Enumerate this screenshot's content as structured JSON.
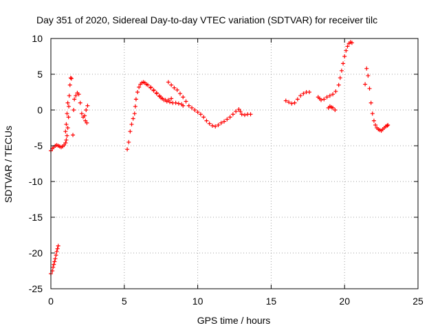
{
  "chart_data": {
    "type": "scatter",
    "title": "Day 351 of 2020, Sidereal Day-to-day VTEC variation (SDTVAR) for receiver tilc",
    "xlabel": "GPS time / hours",
    "ylabel": "SDTVAR / TECUs",
    "xlim": [
      0,
      25
    ],
    "ylim": [
      -25,
      10
    ],
    "x_ticks": [
      0,
      5,
      10,
      15,
      20,
      25
    ],
    "y_ticks": [
      10,
      5,
      0,
      -5,
      -10,
      -15,
      -20,
      -25
    ],
    "grid": true,
    "marker": "plus",
    "marker_color": "#ff0000",
    "series": [
      {
        "points": [
          [
            0.0,
            -22.9
          ],
          [
            0.1,
            -22.5
          ],
          [
            0.15,
            -22.0
          ],
          [
            0.2,
            -21.6
          ],
          [
            0.25,
            -21.2
          ],
          [
            0.3,
            -20.8
          ],
          [
            0.35,
            -20.3
          ],
          [
            0.4,
            -19.8
          ],
          [
            0.45,
            -19.4
          ],
          [
            0.5,
            -19.0
          ],
          [
            0.0,
            -5.7
          ],
          [
            0.1,
            -5.4
          ],
          [
            0.2,
            -5.2
          ],
          [
            0.3,
            -5.0
          ],
          [
            0.4,
            -4.9
          ],
          [
            0.5,
            -5.0
          ],
          [
            0.6,
            -5.1
          ],
          [
            0.7,
            -5.2
          ],
          [
            0.8,
            -5.1
          ],
          [
            0.9,
            -4.9
          ],
          [
            1.0,
            -4.6
          ],
          [
            1.05,
            -4.2
          ],
          [
            1.1,
            -3.6
          ],
          [
            1.15,
            -2.5
          ],
          [
            1.2,
            -1.0
          ],
          [
            1.22,
            0.5
          ],
          [
            1.25,
            2.0
          ],
          [
            1.3,
            3.5
          ],
          [
            1.35,
            4.5
          ],
          [
            1.4,
            4.4
          ],
          [
            1.0,
            -3.0
          ],
          [
            1.05,
            -2.0
          ],
          [
            1.1,
            -0.5
          ],
          [
            1.15,
            1.0
          ],
          [
            1.5,
            -3.5
          ],
          [
            1.55,
            0.0
          ],
          [
            1.6,
            1.5
          ],
          [
            1.7,
            2.0
          ],
          [
            1.8,
            2.4
          ],
          [
            1.9,
            2.2
          ],
          [
            2.0,
            1.0
          ],
          [
            2.1,
            -0.5
          ],
          [
            2.2,
            -1.0
          ],
          [
            2.3,
            -0.8
          ],
          [
            2.35,
            -1.5
          ],
          [
            2.4,
            0.0
          ],
          [
            2.45,
            -1.8
          ],
          [
            2.5,
            0.6
          ],
          [
            5.2,
            -5.5
          ],
          [
            5.3,
            -4.5
          ],
          [
            5.4,
            -3.0
          ],
          [
            5.5,
            -2.0
          ],
          [
            5.6,
            -1.2
          ],
          [
            5.7,
            -0.5
          ],
          [
            5.75,
            0.5
          ],
          [
            5.8,
            1.5
          ],
          [
            5.9,
            2.5
          ],
          [
            6.0,
            3.2
          ],
          [
            6.1,
            3.6
          ],
          [
            6.2,
            3.8
          ],
          [
            6.3,
            3.9
          ],
          [
            6.4,
            3.8
          ],
          [
            6.6,
            3.5
          ],
          [
            6.8,
            3.1
          ],
          [
            7.0,
            2.7
          ],
          [
            7.2,
            2.3
          ],
          [
            7.4,
            1.9
          ],
          [
            7.6,
            1.6
          ],
          [
            7.8,
            1.4
          ],
          [
            8.0,
            1.4
          ],
          [
            8.2,
            1.6
          ],
          [
            6.5,
            3.6
          ],
          [
            6.8,
            3.2
          ],
          [
            7.0,
            2.8
          ],
          [
            7.2,
            2.4
          ],
          [
            7.4,
            2.0
          ],
          [
            7.5,
            1.7
          ],
          [
            7.7,
            1.4
          ],
          [
            7.9,
            1.2
          ],
          [
            8.1,
            1.1
          ],
          [
            8.3,
            1.0
          ],
          [
            8.5,
            1.0
          ],
          [
            8.7,
            0.9
          ],
          [
            8.9,
            0.8
          ],
          [
            9.0,
            0.6
          ],
          [
            8.0,
            3.9
          ],
          [
            8.2,
            3.5
          ],
          [
            8.4,
            3.1
          ],
          [
            8.6,
            2.8
          ],
          [
            8.8,
            2.3
          ],
          [
            9.0,
            1.8
          ],
          [
            9.2,
            1.2
          ],
          [
            9.4,
            0.6
          ],
          [
            9.6,
            0.3
          ],
          [
            9.8,
            0.0
          ],
          [
            10.0,
            -0.3
          ],
          [
            10.2,
            -0.6
          ],
          [
            10.4,
            -1.0
          ],
          [
            10.6,
            -1.5
          ],
          [
            10.8,
            -1.9
          ],
          [
            11.0,
            -2.2
          ],
          [
            11.2,
            -2.3
          ],
          [
            11.4,
            -2.1
          ],
          [
            11.6,
            -1.8
          ],
          [
            11.8,
            -1.6
          ],
          [
            12.0,
            -1.3
          ],
          [
            12.2,
            -1.0
          ],
          [
            12.4,
            -0.6
          ],
          [
            12.6,
            -0.2
          ],
          [
            12.8,
            0.1
          ],
          [
            12.9,
            -0.2
          ],
          [
            13.0,
            -0.6
          ],
          [
            13.2,
            -0.7
          ],
          [
            13.4,
            -0.6
          ],
          [
            13.6,
            -0.6
          ],
          [
            16.0,
            1.3
          ],
          [
            16.2,
            1.1
          ],
          [
            16.4,
            0.9
          ],
          [
            16.6,
            1.0
          ],
          [
            16.8,
            1.5
          ],
          [
            17.0,
            2.0
          ],
          [
            17.2,
            2.3
          ],
          [
            17.4,
            2.5
          ],
          [
            17.6,
            2.5
          ],
          [
            18.2,
            1.8
          ],
          [
            18.3,
            1.6
          ],
          [
            18.4,
            1.4
          ],
          [
            18.6,
            1.5
          ],
          [
            18.8,
            1.8
          ],
          [
            18.9,
            0.3
          ],
          [
            19.0,
            0.5
          ],
          [
            19.1,
            0.4
          ],
          [
            19.2,
            0.3
          ],
          [
            19.35,
            0.0
          ],
          [
            19.0,
            2.0
          ],
          [
            19.2,
            2.2
          ],
          [
            19.4,
            2.6
          ],
          [
            19.6,
            3.5
          ],
          [
            19.7,
            4.5
          ],
          [
            19.8,
            5.5
          ],
          [
            19.9,
            6.5
          ],
          [
            20.0,
            7.5
          ],
          [
            20.1,
            8.3
          ],
          [
            20.2,
            8.9
          ],
          [
            20.3,
            9.3
          ],
          [
            20.4,
            9.5
          ],
          [
            20.5,
            9.4
          ],
          [
            21.4,
            3.6
          ],
          [
            21.5,
            5.8
          ],
          [
            21.6,
            4.8
          ],
          [
            21.7,
            3.0
          ],
          [
            21.8,
            1.0
          ],
          [
            21.9,
            -0.5
          ],
          [
            22.0,
            -1.5
          ],
          [
            22.1,
            -2.1
          ],
          [
            22.2,
            -2.5
          ],
          [
            22.3,
            -2.7
          ],
          [
            22.4,
            -2.8
          ],
          [
            22.5,
            -2.9
          ],
          [
            22.6,
            -2.7
          ],
          [
            22.7,
            -2.5
          ],
          [
            22.8,
            -2.3
          ],
          [
            22.9,
            -2.2
          ],
          [
            22.95,
            -2.1
          ]
        ]
      }
    ]
  }
}
